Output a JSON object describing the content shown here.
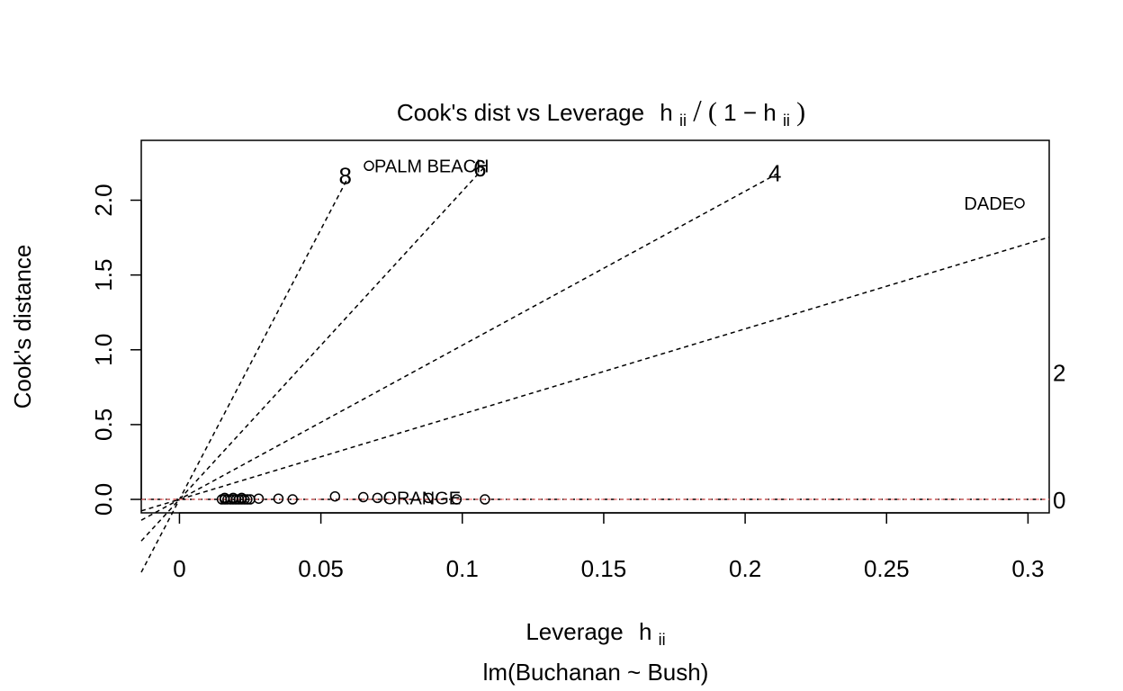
{
  "chart_data": {
    "type": "scatter",
    "title": {
      "prefix": "Cook's dist vs Leverage",
      "h": "h",
      "sub": "ii",
      "slash": "/",
      "open": "(",
      "one_minus": "1 − ",
      "close": ")"
    },
    "xlabel": {
      "prefix": "Leverage",
      "h": "h",
      "sub": "ii"
    },
    "ylabel": "Cook's distance",
    "subtitle": "lm(Buchanan ~ Bush)",
    "xlim": [
      -0.0135,
      0.3075
    ],
    "ylim": [
      -0.09,
      2.4
    ],
    "x_ticks": [
      0,
      0.05,
      0.1,
      0.15,
      0.2,
      0.25,
      0.3
    ],
    "x_tick_labels": [
      "0",
      "0.05",
      "0.1",
      "0.15",
      "0.2",
      "0.25",
      "0.3"
    ],
    "y_ticks": [
      0,
      0.5,
      1,
      1.5,
      2
    ],
    "y_tick_labels": [
      "0.0",
      "0.5",
      "1.0",
      "1.5",
      "2.0"
    ],
    "points": [
      {
        "x": 0.015,
        "y": 0.0
      },
      {
        "x": 0.016,
        "y": 0.0
      },
      {
        "x": 0.017,
        "y": 0.0
      },
      {
        "x": 0.018,
        "y": 0.0
      },
      {
        "x": 0.019,
        "y": 0.0
      },
      {
        "x": 0.02,
        "y": 0.0
      },
      {
        "x": 0.021,
        "y": 0.0
      },
      {
        "x": 0.022,
        "y": 0.0
      },
      {
        "x": 0.023,
        "y": 0.0
      },
      {
        "x": 0.024,
        "y": 0.0
      },
      {
        "x": 0.025,
        "y": 0.0
      },
      {
        "x": 0.016,
        "y": 0.01
      },
      {
        "x": 0.019,
        "y": 0.01
      },
      {
        "x": 0.022,
        "y": 0.01
      },
      {
        "x": 0.028,
        "y": 0.005
      },
      {
        "x": 0.035,
        "y": 0.005
      },
      {
        "x": 0.04,
        "y": 0.0
      },
      {
        "x": 0.055,
        "y": 0.02
      },
      {
        "x": 0.065,
        "y": 0.015
      },
      {
        "x": 0.088,
        "y": 0.01
      },
      {
        "x": 0.098,
        "y": 0.0
      },
      {
        "x": 0.108,
        "y": 0.0
      },
      {
        "x": 0.067,
        "y": 2.23,
        "label": "PALM BEACH",
        "label_side": "right"
      },
      {
        "x": 0.297,
        "y": 1.98,
        "label": "DADE",
        "label_side": "left"
      },
      {
        "x": 0.07,
        "y": 0.01,
        "label": "ORANGE",
        "label_side": "right"
      }
    ],
    "contours": [
      {
        "label": "8",
        "slope": 36.1,
        "x_end": 0.0599
      },
      {
        "label": "6",
        "slope": 20.6,
        "x_end": 0.1075
      },
      {
        "label": "4",
        "slope": 10.3,
        "x_end": 0.2118
      },
      {
        "label": "2",
        "slope": 5.7,
        "x_end": 0.3075
      },
      {
        "label": "0",
        "slope": 0.0,
        "x_end": 0.3075
      }
    ]
  }
}
